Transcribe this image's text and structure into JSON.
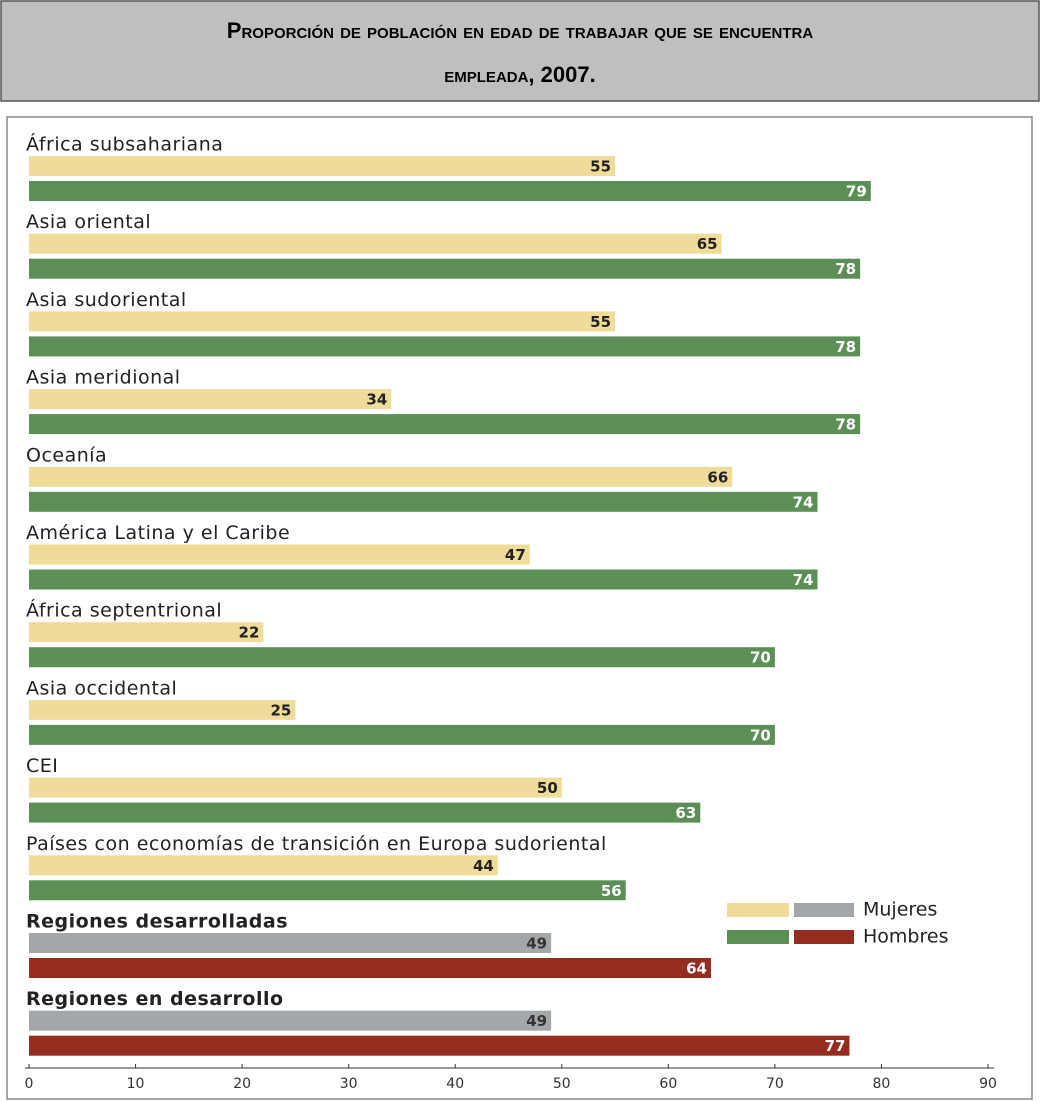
{
  "chart_data": {
    "type": "bar",
    "orientation": "horizontal",
    "title": "Proporción de población en edad de trabajar que se encuentra empleada, 2007.",
    "categories": [
      "África subsahariana",
      "Asia oriental",
      "Asia sudoriental",
      "Asia meridional",
      "Oceanía",
      "América Latina y el Caribe",
      "África septentrional",
      "Asia occidental",
      "CEI",
      "Países con economías de transición en Europa sudoriental",
      "Regiones desarrolladas",
      "Regiones en desarrollo"
    ],
    "highlight_categories": [
      10,
      11
    ],
    "series": [
      {
        "name": "Mujeres",
        "color": "#f0dc9a",
        "highlight_color": "#a4a7a9",
        "values": [
          55,
          65,
          55,
          34,
          66,
          47,
          22,
          25,
          50,
          44,
          49,
          49
        ]
      },
      {
        "name": "Hombres",
        "color": "#5b8f55",
        "highlight_color": "#952c1f",
        "values": [
          79,
          78,
          78,
          78,
          74,
          74,
          70,
          70,
          63,
          56,
          64,
          77
        ]
      }
    ],
    "xlim": [
      0,
      90
    ],
    "xticks": [
      0,
      10,
      20,
      30,
      40,
      50,
      60,
      70,
      80,
      90
    ],
    "legend": "right"
  }
}
